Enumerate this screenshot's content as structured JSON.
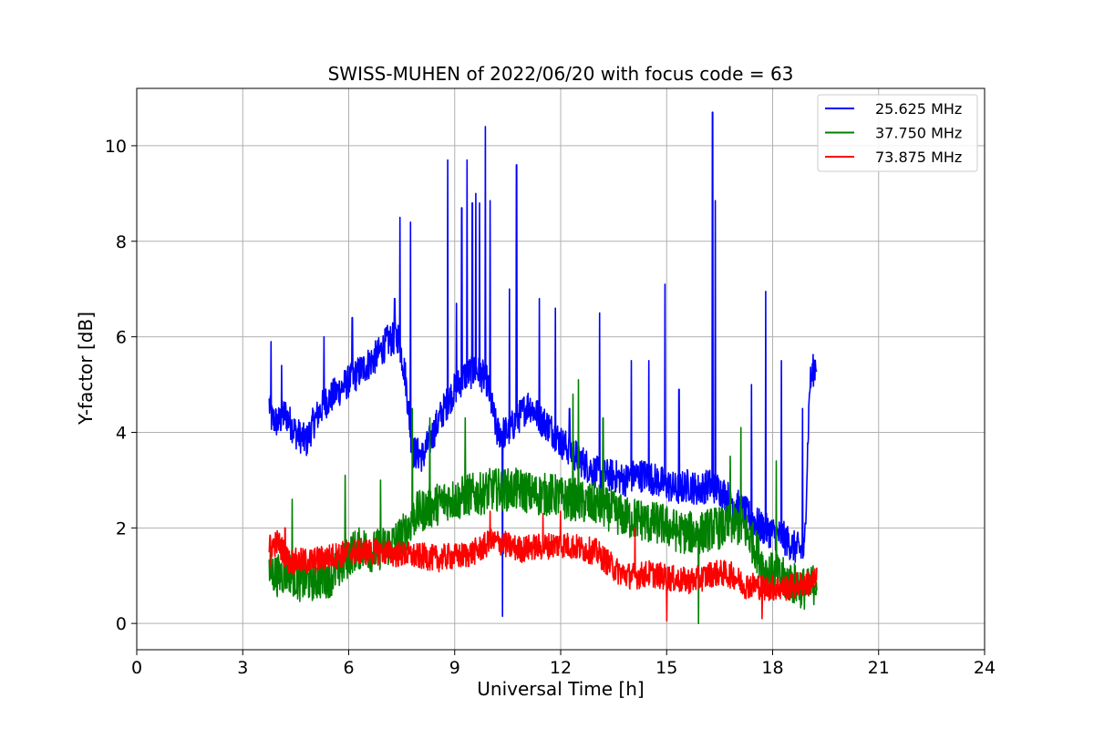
{
  "chart_data": {
    "type": "line",
    "title": "SWISS-MUHEN of 2022/06/20 with focus code = 63",
    "xlabel": "Universal Time [h]",
    "ylabel": "Y-factor [dB]",
    "xlim": [
      0,
      24
    ],
    "ylim": [
      -0.55,
      11.2
    ],
    "xticks": [
      0,
      3,
      6,
      9,
      12,
      15,
      18,
      21,
      24
    ],
    "yticks": [
      0,
      2,
      4,
      6,
      8,
      10
    ],
    "grid": true,
    "legend_position": "top-right",
    "series": [
      {
        "name": "25.625 MHz",
        "color": "#0000ff",
        "x": [
          3.75,
          3.8,
          4.0,
          4.2,
          4.5,
          4.8,
          5.0,
          5.3,
          5.6,
          5.9,
          6.2,
          6.5,
          6.8,
          7.1,
          7.4,
          7.6,
          7.8,
          8.1,
          8.4,
          8.7,
          9.0,
          9.3,
          9.6,
          9.9,
          10.2,
          10.5,
          10.8,
          11.1,
          11.4,
          11.7,
          12.0,
          12.3,
          12.6,
          12.9,
          13.2,
          13.5,
          13.8,
          14.1,
          14.4,
          14.7,
          15.0,
          15.3,
          15.6,
          15.9,
          16.2,
          16.5,
          16.8,
          17.1,
          17.4,
          17.7,
          18.0,
          18.3,
          18.6,
          18.9,
          19.05,
          19.15,
          19.25
        ],
        "y": [
          4.6,
          4.3,
          4.2,
          4.4,
          4.0,
          3.8,
          4.2,
          4.6,
          4.8,
          5.0,
          5.2,
          5.4,
          5.6,
          5.9,
          6.0,
          5.2,
          3.6,
          3.5,
          4.0,
          4.5,
          4.9,
          5.2,
          5.3,
          5.1,
          4.0,
          4.0,
          4.3,
          4.6,
          4.3,
          4.1,
          3.8,
          3.6,
          3.4,
          3.2,
          3.1,
          3.1,
          3.0,
          3.1,
          3.1,
          3.0,
          2.9,
          2.8,
          2.9,
          2.8,
          2.9,
          2.8,
          2.6,
          2.4,
          2.2,
          2.0,
          1.9,
          1.8,
          1.6,
          1.5,
          5.0,
          5.3,
          5.5
        ],
        "spikes": [
          [
            3.8,
            5.9
          ],
          [
            4.1,
            5.4
          ],
          [
            5.3,
            6.0
          ],
          [
            6.1,
            6.4
          ],
          [
            7.3,
            6.8
          ],
          [
            7.45,
            8.5
          ],
          [
            7.75,
            8.4
          ],
          [
            8.8,
            9.7
          ],
          [
            9.05,
            6.7
          ],
          [
            9.2,
            8.7
          ],
          [
            9.35,
            9.7
          ],
          [
            9.5,
            8.8
          ],
          [
            9.6,
            9.0
          ],
          [
            9.7,
            8.8
          ],
          [
            9.87,
            10.4
          ],
          [
            10.0,
            8.85
          ],
          [
            10.55,
            7.0
          ],
          [
            10.75,
            9.6
          ],
          [
            11.4,
            6.8
          ],
          [
            11.85,
            6.6
          ],
          [
            12.25,
            4.5
          ],
          [
            13.1,
            6.5
          ],
          [
            14.0,
            5.5
          ],
          [
            14.5,
            5.5
          ],
          [
            14.95,
            7.1
          ],
          [
            15.35,
            4.9
          ],
          [
            16.3,
            10.7
          ],
          [
            16.38,
            8.85
          ],
          [
            17.4,
            5.0
          ],
          [
            17.8,
            6.95
          ],
          [
            18.25,
            5.5
          ],
          [
            18.85,
            4.5
          ],
          [
            10.35,
            0.15
          ]
        ],
        "noise": 0.35
      },
      {
        "name": "37.750 MHz",
        "color": "#008000",
        "x": [
          3.75,
          4.0,
          4.3,
          4.6,
          4.9,
          5.2,
          5.5,
          5.8,
          6.1,
          6.4,
          6.7,
          7.0,
          7.3,
          7.6,
          7.9,
          8.2,
          8.5,
          8.8,
          9.1,
          9.4,
          9.7,
          10.0,
          10.3,
          10.6,
          10.9,
          11.2,
          11.5,
          11.8,
          12.1,
          12.4,
          12.7,
          13.0,
          13.3,
          13.6,
          13.9,
          14.2,
          14.5,
          14.8,
          15.1,
          15.4,
          15.7,
          16.0,
          16.3,
          16.6,
          16.9,
          17.2,
          17.5,
          17.8,
          18.1,
          18.4,
          18.7,
          19.0,
          19.25
        ],
        "y": [
          1.1,
          1.0,
          1.1,
          0.9,
          0.9,
          0.95,
          1.0,
          1.2,
          1.5,
          1.6,
          1.5,
          1.6,
          1.7,
          1.9,
          2.3,
          2.4,
          2.5,
          2.6,
          2.6,
          2.7,
          2.7,
          2.8,
          2.8,
          2.8,
          2.8,
          2.7,
          2.7,
          2.7,
          2.6,
          2.6,
          2.5,
          2.5,
          2.4,
          2.3,
          2.2,
          2.2,
          2.1,
          2.1,
          2.0,
          1.9,
          1.9,
          1.9,
          2.0,
          2.0,
          2.1,
          2.0,
          1.6,
          1.1,
          1.0,
          0.9,
          0.8,
          0.7,
          0.9
        ],
        "spikes": [
          [
            4.4,
            2.6
          ],
          [
            5.9,
            3.1
          ],
          [
            6.9,
            3.0
          ],
          [
            7.8,
            4.5
          ],
          [
            8.3,
            4.3
          ],
          [
            9.3,
            4.3
          ],
          [
            12.35,
            4.8
          ],
          [
            12.5,
            5.1
          ],
          [
            13.2,
            4.3
          ],
          [
            17.1,
            4.1
          ],
          [
            16.8,
            3.5
          ],
          [
            18.1,
            3.4
          ],
          [
            15.9,
            0.0
          ]
        ],
        "noise": 0.45
      },
      {
        "name": "73.875 MHz",
        "color": "#ff0000",
        "x": [
          3.75,
          4.0,
          4.3,
          4.6,
          4.9,
          5.2,
          5.5,
          5.8,
          6.1,
          6.4,
          6.7,
          7.0,
          7.3,
          7.6,
          7.9,
          8.2,
          8.5,
          8.8,
          9.1,
          9.4,
          9.7,
          10.0,
          10.3,
          10.6,
          10.9,
          11.2,
          11.5,
          11.8,
          12.1,
          12.4,
          12.7,
          13.0,
          13.3,
          13.6,
          13.9,
          14.2,
          14.5,
          14.8,
          15.1,
          15.4,
          15.7,
          16.0,
          16.3,
          16.6,
          16.9,
          17.2,
          17.5,
          17.8,
          18.1,
          18.4,
          18.7,
          19.0,
          19.25
        ],
        "y": [
          1.6,
          1.7,
          1.3,
          1.3,
          1.3,
          1.35,
          1.4,
          1.45,
          1.5,
          1.5,
          1.5,
          1.5,
          1.45,
          1.45,
          1.4,
          1.4,
          1.35,
          1.4,
          1.4,
          1.45,
          1.55,
          1.7,
          1.7,
          1.6,
          1.55,
          1.6,
          1.6,
          1.65,
          1.65,
          1.6,
          1.55,
          1.5,
          1.3,
          1.1,
          1.0,
          1.0,
          1.05,
          1.0,
          0.95,
          0.9,
          0.9,
          0.95,
          1.05,
          1.05,
          1.0,
          0.8,
          0.8,
          0.75,
          0.75,
          0.75,
          0.8,
          0.85,
          0.9
        ],
        "spikes": [
          [
            10.0,
            2.35
          ],
          [
            11.5,
            2.3
          ],
          [
            12.0,
            2.35
          ],
          [
            4.2,
            2.0
          ],
          [
            3.8,
            1.2
          ],
          [
            14.1,
            2.0
          ],
          [
            15.0,
            0.05
          ],
          [
            17.7,
            0.1
          ]
        ],
        "noise": 0.28
      }
    ]
  }
}
